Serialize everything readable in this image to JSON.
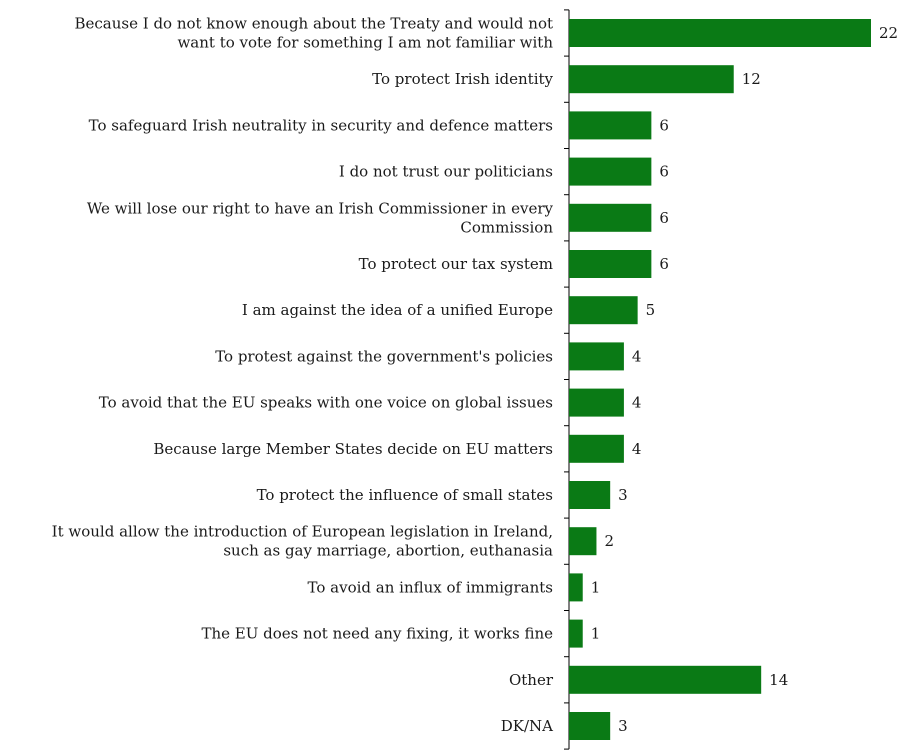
{
  "chart_data": {
    "type": "bar",
    "orientation": "horizontal",
    "bar_color": "#0a7a15",
    "categories": [
      [
        "Because I do not know enough about the Treaty and would not",
        "want to vote for something I am not familiar with"
      ],
      [
        "To protect Irish identity"
      ],
      [
        "To safeguard Irish neutrality in security and defence matters"
      ],
      [
        "I do not trust our politicians"
      ],
      [
        "We will lose our right to have an Irish Commissioner in every",
        "Commission"
      ],
      [
        "To protect our tax system"
      ],
      [
        "I am against the idea of a unified Europe"
      ],
      [
        "To protest against the government's policies"
      ],
      [
        "To avoid that the EU speaks with one voice on global issues"
      ],
      [
        "Because large Member States decide on EU matters"
      ],
      [
        "To protect the influence of small states"
      ],
      [
        "It would allow the introduction of European legislation in Ireland,",
        "such as gay marriage, abortion, euthanasia"
      ],
      [
        "To avoid an influx of immigrants"
      ],
      [
        "The EU does not need any fixing, it works fine"
      ],
      [
        "Other"
      ],
      [
        "DK/NA"
      ]
    ],
    "values": [
      22,
      12,
      6,
      6,
      6,
      6,
      5,
      4,
      4,
      4,
      3,
      2,
      1,
      1,
      14,
      3
    ],
    "value_labels": [
      "22",
      "12",
      "6",
      "6",
      "6",
      "6",
      "5",
      "4",
      "4",
      "4",
      "3",
      "2",
      "1",
      "1",
      "14",
      "3"
    ],
    "title": "",
    "xlabel": "",
    "ylabel": "",
    "xlim": [
      0,
      22
    ],
    "grid": false,
    "legend": "none"
  }
}
